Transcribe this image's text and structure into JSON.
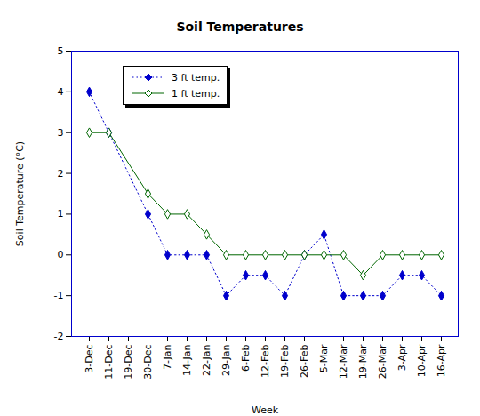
{
  "chart_data": {
    "type": "line",
    "title": "Soil Temperatures",
    "x_label": "Week",
    "y_label": "Soil Temperature (°C)",
    "categories": [
      "3-Dec",
      "11-Dec",
      "19-Dec",
      "30-Dec",
      "7-Jan",
      "14-Jan",
      "22-Jan",
      "29-Jan",
      "6-Feb",
      "12-Feb",
      "19-Feb",
      "26-Feb",
      "5-Mar",
      "12-Mar",
      "19-Mar",
      "26-Mar",
      "3-Apr",
      "10-Apr",
      "16-Apr"
    ],
    "series": [
      {
        "name": "3 ft temp.",
        "color": "#0000cc",
        "marker": "diamond",
        "line_style": "dotted",
        "values": [
          4,
          3,
          null,
          1,
          0,
          0,
          0,
          -1,
          -0.5,
          -0.5,
          -1,
          0,
          0.5,
          -1,
          -1,
          -1,
          -0.5,
          -0.5,
          -1
        ]
      },
      {
        "name": "1 ft temp.",
        "color": "#006600",
        "marker": "diamond-open",
        "line_style": "solid",
        "values": [
          3,
          3,
          null,
          1.5,
          1,
          1,
          0.5,
          0,
          0,
          0,
          0,
          0,
          0,
          0,
          -0.5,
          0,
          0,
          0,
          0
        ]
      }
    ],
    "ylim": [
      -2,
      5
    ],
    "yticks": [
      -2,
      -1,
      0,
      1,
      2,
      3,
      4,
      5
    ],
    "grid": false,
    "legend": "upper left"
  }
}
